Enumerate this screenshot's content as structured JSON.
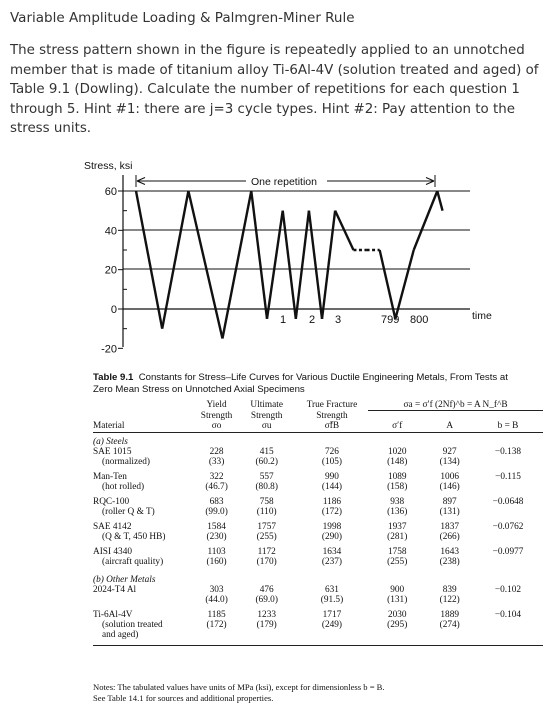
{
  "title": "Variable Amplitude Loading & Palmgren-Miner Rule",
  "problem": "The stress pattern shown in the figure is repeatedly applied to an unnotched member that is made of titanium alloy Ti-6Al-4V (solution treated and aged) of Table 9.1 (Dowling). Calculate the number of repetitions for each question 1 through 5. Hint #1: there are j=3 cycle types. Hint #2: Pay attention to the stress units.",
  "chart_data": {
    "type": "line",
    "ylabel": "Stress, ksi",
    "xlabel": "time",
    "yticks": [
      "60",
      "40",
      "20",
      "0",
      "-20"
    ],
    "ylim": [
      -20,
      60
    ],
    "span_label": "One repetition",
    "cycle_labels": [
      "1",
      "2",
      "3",
      "799",
      "800"
    ],
    "series": [
      {
        "points": [
          {
            "t": 0.0,
            "stress": 60
          },
          {
            "t": 1.0,
            "stress": -10
          },
          {
            "t": 2.0,
            "stress": 60
          },
          {
            "t": 3.3,
            "stress": -15
          },
          {
            "t": 4.4,
            "stress": 60
          },
          {
            "t": 5.0,
            "stress": -5
          },
          {
            "t": 5.6,
            "stress": 50
          },
          {
            "t": 6.1,
            "stress": -5
          },
          {
            "t": 6.6,
            "stress": 50
          },
          {
            "t": 7.1,
            "stress": -5
          },
          {
            "t": 7.6,
            "stress": 50
          },
          {
            "t": 8.3,
            "stress": 30
          },
          {
            "t": 8.8,
            "stress": 30
          },
          {
            "t": 9.3,
            "stress": 30
          },
          {
            "t": 9.9,
            "stress": -5
          },
          {
            "t": 10.6,
            "stress": 30
          },
          {
            "t": 11.5,
            "stress": 60
          },
          {
            "t": 11.7,
            "stress": 50
          }
        ],
        "dashed_segment": [
          8.3,
          9.3
        ]
      }
    ]
  },
  "table": {
    "caption_num": "Table 9.1",
    "caption_text": "Constants for Stress–Life Curves for Various Ductile Engineering Metals, From Tests at Zero Mean Stress on Unnotched Axial Specimens",
    "formula": "σa = σ′f (2Nf)^b = A N_f^B",
    "headers": {
      "material": "Material",
      "yield": [
        "Yield",
        "Strength",
        "σo"
      ],
      "ultimate": [
        "Ultimate",
        "Strength",
        "σu"
      ],
      "fracture": [
        "True Fracture",
        "Strength",
        "σ̃fB"
      ],
      "sigf": "σ′f",
      "A": "A",
      "bB": "b = B"
    },
    "sections": [
      {
        "label": "(a) Steels",
        "rows": [
          {
            "name": "SAE 1015",
            "sub": "(normalized)",
            "yield": [
              "228",
              "(33)"
            ],
            "ult": [
              "415",
              "(60.2)"
            ],
            "frac": [
              "726",
              "(105)"
            ],
            "sigf": [
              "1020",
              "(148)"
            ],
            "A": [
              "927",
              "(134)"
            ],
            "b": "−0.138"
          },
          {
            "name": "Man-Ten",
            "sub": "(hot rolled)",
            "yield": [
              "322",
              "(46.7)"
            ],
            "ult": [
              "557",
              "(80.8)"
            ],
            "frac": [
              "990",
              "(144)"
            ],
            "sigf": [
              "1089",
              "(158)"
            ],
            "A": [
              "1006",
              "(146)"
            ],
            "b": "−0.115"
          },
          {
            "name": "RQC-100",
            "sub": "(roller Q & T)",
            "yield": [
              "683",
              "(99.0)"
            ],
            "ult": [
              "758",
              "(110)"
            ],
            "frac": [
              "1186",
              "(172)"
            ],
            "sigf": [
              "938",
              "(136)"
            ],
            "A": [
              "897",
              "(131)"
            ],
            "b": "−0.0648"
          },
          {
            "name": "SAE 4142",
            "sub": "(Q & T, 450 HB)",
            "yield": [
              "1584",
              "(230)"
            ],
            "ult": [
              "1757",
              "(255)"
            ],
            "frac": [
              "1998",
              "(290)"
            ],
            "sigf": [
              "1937",
              "(281)"
            ],
            "A": [
              "1837",
              "(266)"
            ],
            "b": "−0.0762"
          },
          {
            "name": "AISI 4340",
            "sub": "(aircraft quality)",
            "yield": [
              "1103",
              "(160)"
            ],
            "ult": [
              "1172",
              "(170)"
            ],
            "frac": [
              "1634",
              "(237)"
            ],
            "sigf": [
              "1758",
              "(255)"
            ],
            "A": [
              "1643",
              "(238)"
            ],
            "b": "−0.0977"
          }
        ]
      },
      {
        "label": "(b) Other Metals",
        "rows": [
          {
            "name": "2024-T4 Al",
            "sub": "",
            "yield": [
              "303",
              "(44.0)"
            ],
            "ult": [
              "476",
              "(69.0)"
            ],
            "frac": [
              "631",
              "(91.5)"
            ],
            "sigf": [
              "900",
              "(131)"
            ],
            "A": [
              "839",
              "(122)"
            ],
            "b": "−0.102"
          },
          {
            "name": "Ti-6Al-4V",
            "sub": "(solution treated",
            "sub2": "and aged)",
            "yield": [
              "1185",
              "(172)"
            ],
            "ult": [
              "1233",
              "(179)"
            ],
            "frac": [
              "1717",
              "(249)"
            ],
            "sigf": [
              "2030",
              "(295)"
            ],
            "A": [
              "1889",
              "(274)"
            ],
            "b": "−0.104"
          }
        ]
      }
    ],
    "notes": [
      "Notes: The tabulated values have units of MPa (ksi), except for dimensionless b = B.",
      "See Table 14.1 for sources and additional properties."
    ]
  }
}
